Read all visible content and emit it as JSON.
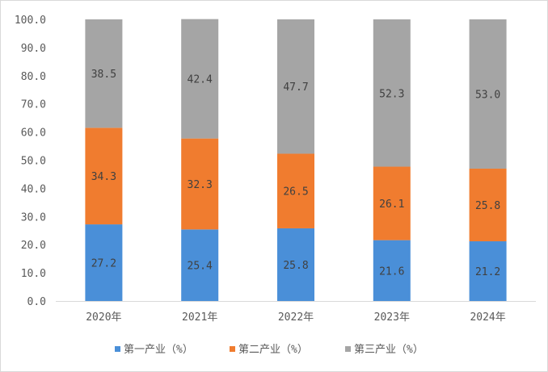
{
  "chart_data": {
    "type": "bar",
    "stacked": true,
    "title": "",
    "xlabel": "",
    "ylabel": "",
    "ylim": [
      0,
      100
    ],
    "yticks": [
      0,
      10,
      20,
      30,
      40,
      50,
      60,
      70,
      80,
      90,
      100
    ],
    "ytick_labels": [
      "0.0",
      "10.0",
      "20.0",
      "30.0",
      "40.0",
      "50.0",
      "60.0",
      "70.0",
      "80.0",
      "90.0",
      "100.0"
    ],
    "grid": false,
    "legend_position": "bottom",
    "categories": [
      "2020年",
      "2021年",
      "2022年",
      "2023年",
      "2024年"
    ],
    "series": [
      {
        "name": "第一产业（%）",
        "color": "#4a8fd8",
        "values": [
          27.2,
          25.4,
          25.8,
          21.6,
          21.2
        ],
        "labels": [
          "27.2",
          "25.4",
          "25.8",
          "21.6",
          "21.2"
        ]
      },
      {
        "name": "第二产业（%）",
        "color": "#f07c2f",
        "values": [
          34.3,
          32.3,
          26.5,
          26.1,
          25.8
        ],
        "labels": [
          "34.3",
          "32.3",
          "26.5",
          "26.1",
          "25.8"
        ]
      },
      {
        "name": "第三产业（%）",
        "color": "#a5a5a5",
        "values": [
          38.5,
          42.4,
          47.7,
          52.3,
          53.0
        ],
        "labels": [
          "38.5",
          "42.4",
          "47.7",
          "52.3",
          "53.0"
        ]
      }
    ]
  }
}
